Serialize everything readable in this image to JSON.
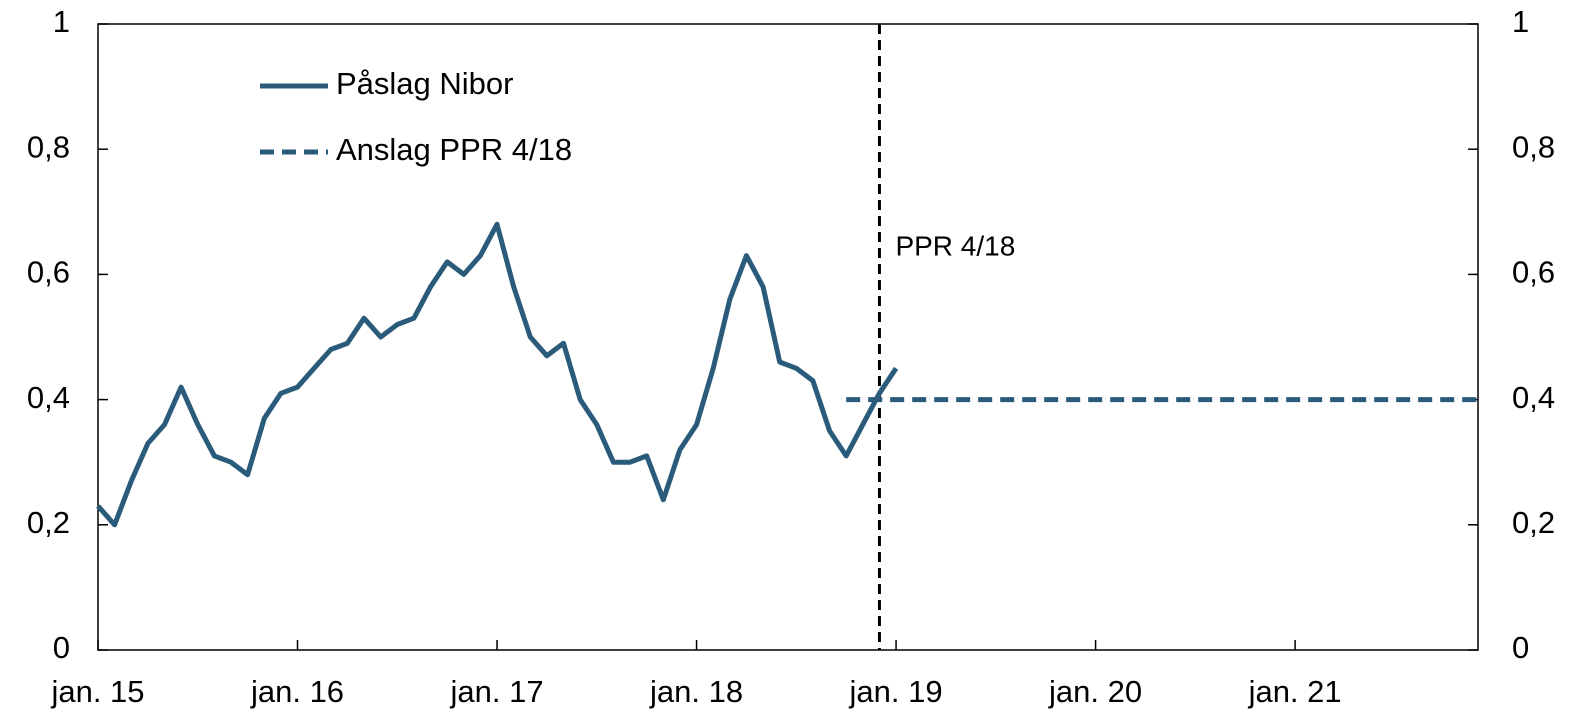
{
  "chart_data": {
    "type": "line",
    "x": [
      "2015-01",
      "2015-02",
      "2015-03",
      "2015-04",
      "2015-05",
      "2015-06",
      "2015-07",
      "2015-08",
      "2015-09",
      "2015-10",
      "2015-11",
      "2015-12",
      "2016-01",
      "2016-02",
      "2016-03",
      "2016-04",
      "2016-05",
      "2016-06",
      "2016-07",
      "2016-08",
      "2016-09",
      "2016-10",
      "2016-11",
      "2016-12",
      "2017-01",
      "2017-02",
      "2017-03",
      "2017-04",
      "2017-05",
      "2017-06",
      "2017-07",
      "2017-08",
      "2017-09",
      "2017-10",
      "2017-11",
      "2017-12",
      "2018-01",
      "2018-02",
      "2018-03",
      "2018-04",
      "2018-05",
      "2018-06",
      "2018-07",
      "2018-08",
      "2018-09",
      "2018-10",
      "2018-11",
      "2018-12",
      "2019-01",
      "2019-02",
      "2019-03",
      "2019-04",
      "2019-05",
      "2019-06",
      "2019-07",
      "2019-08",
      "2019-09",
      "2019-10",
      "2019-11",
      "2019-12",
      "2020-01",
      "2020-02",
      "2020-03",
      "2020-04",
      "2020-05",
      "2020-06",
      "2020-07",
      "2020-08",
      "2020-09",
      "2020-10",
      "2020-11",
      "2020-12",
      "2021-01",
      "2021-02",
      "2021-03",
      "2021-04",
      "2021-05",
      "2021-06",
      "2021-07",
      "2021-08",
      "2021-09",
      "2021-10",
      "2021-11",
      "2021-12"
    ],
    "series": [
      {
        "name": "Påslag Nibor",
        "color": "#2a5b7a",
        "style": "solid",
        "values": [
          0.23,
          0.2,
          0.27,
          0.33,
          0.36,
          0.42,
          0.36,
          0.31,
          0.3,
          0.28,
          0.37,
          0.41,
          0.42,
          0.45,
          0.48,
          0.49,
          0.53,
          0.5,
          0.52,
          0.53,
          0.58,
          0.62,
          0.6,
          0.63,
          0.68,
          0.58,
          0.5,
          0.47,
          0.49,
          0.4,
          0.36,
          0.3,
          0.3,
          0.31,
          0.24,
          0.32,
          0.36,
          0.45,
          0.56,
          0.63,
          0.58,
          0.46,
          0.45,
          0.43,
          0.35,
          0.31,
          0.36,
          0.41,
          0.45,
          null,
          null,
          null,
          null,
          null,
          null,
          null,
          null,
          null,
          null,
          null,
          null,
          null,
          null,
          null,
          null,
          null,
          null,
          null,
          null,
          null,
          null,
          null,
          null,
          null,
          null,
          null,
          null,
          null,
          null,
          null,
          null,
          null,
          null,
          null
        ]
      },
      {
        "name": "Anslag PPR 4/18",
        "color": "#2a5b7a",
        "style": "dashed",
        "values": [
          null,
          null,
          null,
          null,
          null,
          null,
          null,
          null,
          null,
          null,
          null,
          null,
          null,
          null,
          null,
          null,
          null,
          null,
          null,
          null,
          null,
          null,
          null,
          null,
          null,
          null,
          null,
          null,
          null,
          null,
          null,
          null,
          null,
          null,
          null,
          null,
          null,
          null,
          null,
          null,
          null,
          null,
          null,
          null,
          null,
          0.4,
          0.4,
          0.4,
          0.4,
          0.4,
          0.4,
          0.4,
          0.4,
          0.4,
          0.4,
          0.4,
          0.4,
          0.4,
          0.4,
          0.4,
          0.4,
          0.4,
          0.4,
          0.4,
          0.4,
          0.4,
          0.4,
          0.4,
          0.4,
          0.4,
          0.4,
          0.4,
          0.4,
          0.4,
          0.4,
          0.4,
          0.4,
          0.4,
          0.4,
          0.4,
          0.4,
          0.4,
          0.4,
          0.4
        ]
      }
    ],
    "xlim": [
      "2015-01",
      "2021-12"
    ],
    "xticks": [
      {
        "value": "2015-01",
        "label": "jan. 15"
      },
      {
        "value": "2016-01",
        "label": "jan. 16"
      },
      {
        "value": "2017-01",
        "label": "jan. 17"
      },
      {
        "value": "2018-01",
        "label": "jan. 18"
      },
      {
        "value": "2019-01",
        "label": "jan. 19"
      },
      {
        "value": "2020-01",
        "label": "jan. 20"
      },
      {
        "value": "2021-01",
        "label": "jan. 21"
      }
    ],
    "ylim": [
      0,
      1
    ],
    "yticks": [
      0,
      {
        "value": 0.2,
        "label": "0,2"
      },
      {
        "value": 0.4,
        "label": "0,4"
      },
      {
        "value": 0.6,
        "label": "0,6"
      },
      {
        "value": 0.8,
        "label": "0,8"
      },
      1
    ],
    "y2lim": [
      0,
      1
    ],
    "y2ticks": [
      0,
      {
        "value": 0.2,
        "label": "0,2"
      },
      {
        "value": 0.4,
        "label": "0,4"
      },
      {
        "value": 0.6,
        "label": "0,6"
      },
      {
        "value": 0.8,
        "label": "0,8"
      },
      1
    ],
    "annotations": [
      {
        "text": "PPR 4/18",
        "x": "2018-12"
      }
    ],
    "legend": "upper left",
    "grid": false
  }
}
